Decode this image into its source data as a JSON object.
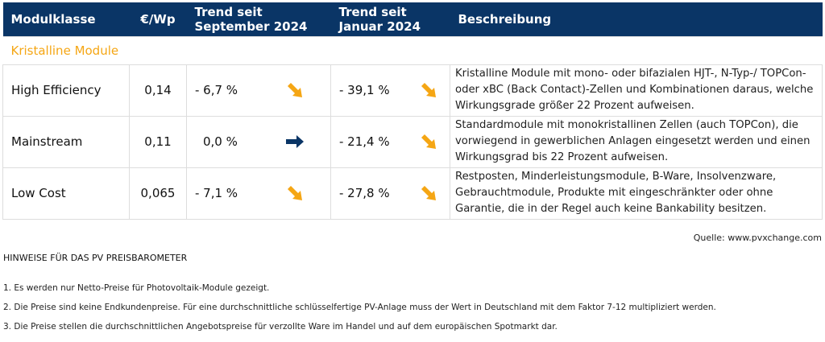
{
  "colors": {
    "header_bg": "#0a3566",
    "accent": "#f5a614",
    "arrow_right": "#0a3566"
  },
  "table": {
    "headers": [
      "Modulklasse",
      "€/Wp",
      "Trend seit September 2024",
      "Trend seit Januar 2024",
      "Beschreibung"
    ],
    "category": "Kristalline Module",
    "rows": [
      {
        "name": "High Efficiency",
        "price": "0,14",
        "trend_sep": "- 6,7 %",
        "trend_sep_icon": "arrow-down-right-icon",
        "trend_jan": "- 39,1 %",
        "trend_jan_icon": "arrow-down-right-icon",
        "desc": "Kristalline Module mit mono- oder bifazialen HJT-, N-Typ-/ TOPCon- oder xBC (Back Contact)-Zellen und Kombinationen daraus, welche Wirkungsgrade größer 22 Prozent aufweisen."
      },
      {
        "name": "Mainstream",
        "price": "0,11",
        "trend_sep": "0,0 %",
        "trend_sep_icon": "arrow-right-icon",
        "trend_jan": "- 21,4 %",
        "trend_jan_icon": "arrow-down-right-icon",
        "desc": "Standardmodule mit monokristallinen Zellen (auch TOPCon), die vorwiegend in gewerblichen Anlagen eingesetzt werden und einen Wirkungsgrad bis 22 Prozent aufweisen."
      },
      {
        "name": "Low Cost",
        "price": "0,065",
        "trend_sep": "- 7,1 %",
        "trend_sep_icon": "arrow-down-right-icon",
        "trend_jan": "- 27,8 %",
        "trend_jan_icon": "arrow-down-right-icon",
        "desc": "Restposten, Minderleistungsmodule, B-Ware, Insolvenzware, Gebrauchtmodule, Produkte mit eingeschränkter oder ohne Garantie, die in der Regel auch keine Bankability besitzen."
      }
    ]
  },
  "source": "Quelle: www.pvxchange.com",
  "notes_title": "HINWEISE FÜR DAS PV PREISBAROMETER",
  "notes": [
    "1.  Es werden nur Netto-Preise für Photovoltaik-Module gezeigt.",
    "2. Die Preise sind keine Endkundenpreise.  Für eine durchschnittliche schlüsselfertige PV-Anlage muss der Wert in Deutschland mit dem Faktor 7-12 multipliziert werden.",
    "3. Die Preise stellen die durchschnittlichen Angebotspreise für verzollte Ware im Handel und auf dem europäischen Spotmarkt dar."
  ]
}
